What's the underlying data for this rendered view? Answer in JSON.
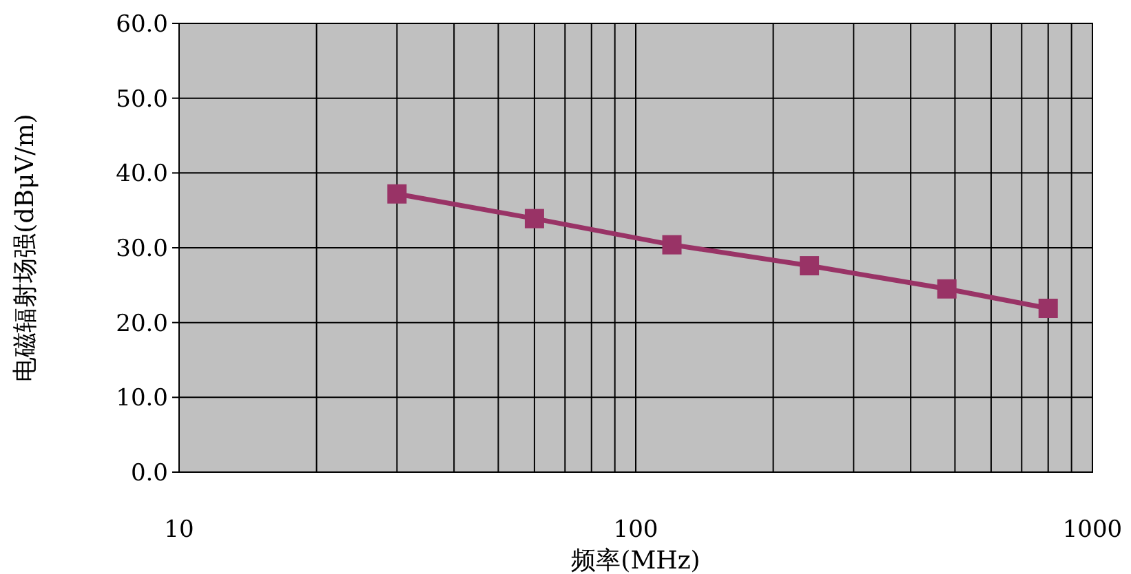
{
  "chart_data": {
    "type": "line",
    "xlabel": "频率(MHz)",
    "ylabel": "电磁辐射场强(dBμV/m)",
    "log": "x",
    "grid": true,
    "marker": "square",
    "line_style": "solid",
    "x": [
      30,
      60,
      120,
      240,
      480,
      800
    ],
    "series": [
      {
        "color": "#993366",
        "values": [
          37.2,
          33.9,
          30.4,
          27.6,
          24.5,
          21.9
        ]
      }
    ],
    "xlim": [
      10,
      1000
    ],
    "xticks": [
      10,
      {
        "value": 20,
        "label": null
      },
      {
        "value": 30,
        "label": null
      },
      {
        "value": 40,
        "label": null
      },
      {
        "value": 50,
        "label": null
      },
      {
        "value": 60,
        "label": null
      },
      {
        "value": 70,
        "label": null
      },
      {
        "value": 80,
        "label": null
      },
      {
        "value": 90,
        "label": null
      },
      100,
      {
        "value": 200,
        "label": null
      },
      {
        "value": 300,
        "label": null
      },
      {
        "value": 400,
        "label": null
      },
      {
        "value": 500,
        "label": null
      },
      {
        "value": 600,
        "label": null
      },
      {
        "value": 700,
        "label": null
      },
      {
        "value": 800,
        "label": null
      },
      {
        "value": 900,
        "label": null
      },
      1000
    ],
    "ylim": [
      0,
      60
    ],
    "yticks": [
      {
        "value": 0,
        "label": "0.0"
      },
      {
        "value": 10,
        "label": "10.0"
      },
      {
        "value": 20,
        "label": "20.0"
      },
      {
        "value": 30,
        "label": "30.0"
      },
      {
        "value": 40,
        "label": "40.0"
      },
      {
        "value": 50,
        "label": "50.0"
      },
      {
        "value": 60,
        "label": "60.0"
      }
    ]
  }
}
